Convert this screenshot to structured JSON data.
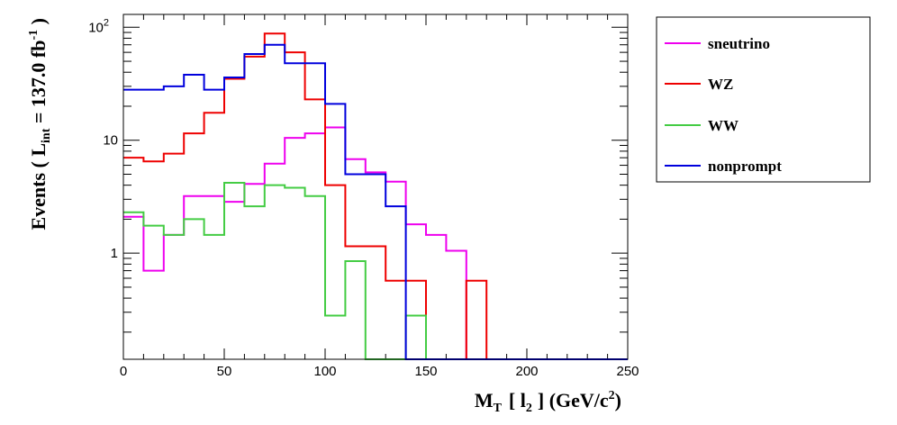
{
  "chart_data": {
    "type": "histogram",
    "xlabel_main": "M",
    "xlabel_sub": "T",
    "xlabel_bracket_open": "[ l",
    "xlabel_lepton_sub": "2",
    "xlabel_units": "] (GeV/c",
    "xlabel_units_exp": "2",
    "xlabel_units_close": ")",
    "ylabel_prefix": "Events  ( L",
    "ylabel_sub": "int",
    "ylabel_value": " = 137.0 fb",
    "ylabel_exp": "-1",
    "ylabel_close": " )",
    "x_scale": "linear",
    "y_scale": "log",
    "xlim": [
      0,
      250
    ],
    "ylim": [
      0.115,
      130
    ],
    "x_ticks": [
      {
        "value": 0,
        "label": "0"
      },
      {
        "value": 50,
        "label": "50"
      },
      {
        "value": 100,
        "label": "100"
      },
      {
        "value": 150,
        "label": "150"
      },
      {
        "value": 200,
        "label": "200"
      },
      {
        "value": 250,
        "label": "250"
      }
    ],
    "y_ticks": [
      {
        "value": 1,
        "label": "1",
        "exp": ""
      },
      {
        "value": 10,
        "label": "10",
        "exp": ""
      },
      {
        "value": 100,
        "label": "10",
        "exp": "2"
      }
    ],
    "bin_edges": [
      0,
      10,
      20,
      30,
      40,
      50,
      60,
      70,
      80,
      90,
      100,
      110,
      120,
      130,
      140,
      150,
      160,
      170,
      180,
      190,
      200,
      210,
      220,
      230,
      240,
      250
    ],
    "series": [
      {
        "name": "sneutrino",
        "color": "#ee00ee",
        "values": [
          2.1,
          0.7,
          1.45,
          3.2,
          3.2,
          2.85,
          4.1,
          6.2,
          10.5,
          11.5,
          13,
          6.8,
          5.2,
          4.3,
          1.8,
          1.45,
          1.05,
          0,
          0,
          0,
          0,
          0,
          0,
          0,
          0
        ]
      },
      {
        "name": "WZ",
        "color": "#ee0000",
        "values": [
          7,
          6.5,
          7.6,
          11.5,
          17.5,
          35,
          55,
          88,
          60,
          23,
          4,
          1.15,
          1.15,
          0.57,
          0.57,
          0,
          0,
          0.57,
          0,
          0,
          0,
          0,
          0,
          0,
          0
        ]
      },
      {
        "name": "WW",
        "color": "#44cc44",
        "values": [
          2.3,
          1.75,
          1.45,
          2,
          1.45,
          4.2,
          2.6,
          4,
          3.8,
          3.2,
          0.28,
          0.85,
          0,
          0,
          0.28,
          0,
          0,
          0,
          0,
          0,
          0,
          0,
          0,
          0,
          0
        ]
      },
      {
        "name": "nonprompt",
        "color": "#0000dd",
        "values": [
          28,
          28,
          30,
          38,
          28,
          36,
          58,
          70,
          48,
          48,
          21,
          5,
          5,
          2.6,
          0,
          0,
          0,
          0,
          0,
          0,
          0,
          0,
          0,
          0,
          0
        ]
      }
    ]
  }
}
